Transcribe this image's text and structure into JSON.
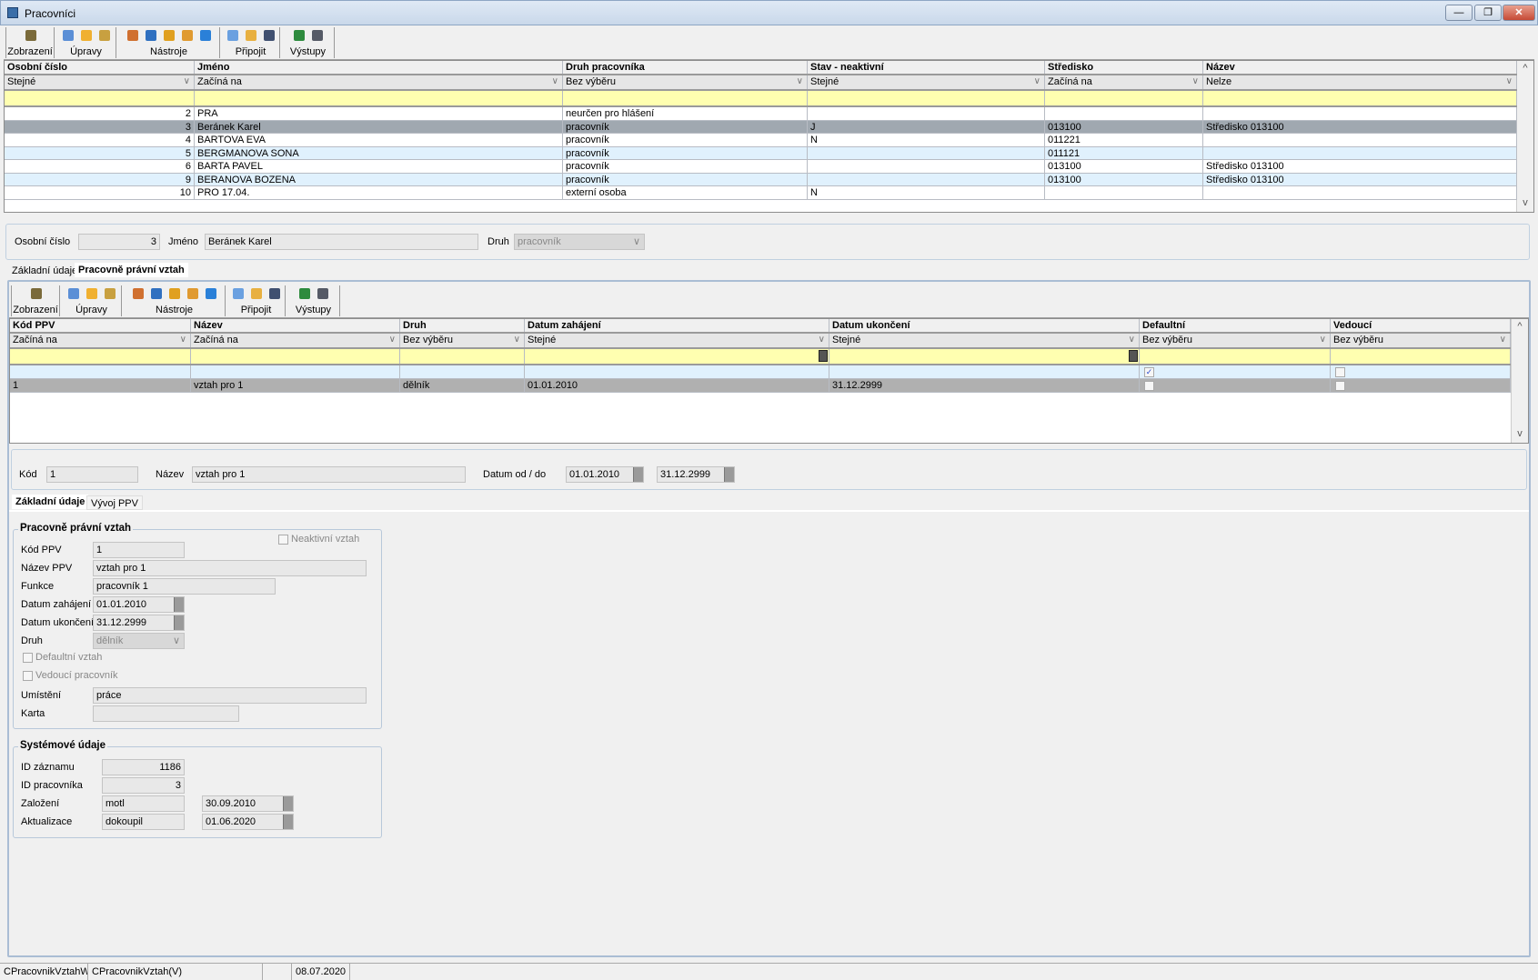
{
  "window": {
    "title": "Pracovníci",
    "minimize": "—",
    "restore": "❐",
    "close": "✕"
  },
  "toolbar": {
    "groups": [
      {
        "label": "Zobrazení",
        "icons": [
          "display-icon"
        ]
      },
      {
        "label": "Úpravy",
        "icons": [
          "new-record-icon",
          "edit-record-icon",
          "delete-icon"
        ]
      },
      {
        "label": "Nástroje",
        "icons": [
          "columns-icon",
          "filter-icon",
          "refresh-icon",
          "chart-icon",
          "help-icon"
        ]
      },
      {
        "label": "Připojit",
        "icons": [
          "attach-note-icon",
          "attach-list-icon",
          "attach-link-icon"
        ]
      },
      {
        "label": "Výstupy",
        "icons": [
          "excel-icon",
          "print-icon"
        ]
      }
    ]
  },
  "main_table": {
    "columns": [
      "Osobní číslo",
      "Jméno",
      "Druh pracovníka",
      "Stav - neaktivní",
      "Středisko",
      "Název"
    ],
    "filters": [
      "Stejné",
      "Začíná na",
      "Bez výběru",
      "Stejné",
      "Začíná na",
      "Nelze"
    ],
    "rows": [
      [
        "2",
        "PRA",
        "neurčen pro hlášení",
        "",
        "",
        ""
      ],
      [
        "3",
        "Beránek Karel",
        "pracovník",
        "J",
        "013100",
        "Středisko 013100"
      ],
      [
        "4",
        "BARTOVA EVA",
        "pracovník",
        "N",
        "011221",
        ""
      ],
      [
        "5",
        "BERGMANOVA SONA",
        "pracovník",
        "",
        "011121",
        ""
      ],
      [
        "6",
        "BARTA PAVEL",
        "pracovník",
        "",
        "013100",
        "Středisko 013100"
      ],
      [
        "9",
        "BERANOVA BOZENA",
        "pracovník",
        "",
        "013100",
        "Středisko 013100"
      ],
      [
        "10",
        "PRO 17.04.",
        "externí osoba",
        "N",
        "",
        ""
      ]
    ],
    "selected_row": 1
  },
  "header_form": {
    "osobni_cislo_label": "Osobní číslo",
    "osobni_cislo": "3",
    "jmeno_label": "Jméno",
    "jmeno": "Beránek Karel",
    "druh_label": "Druh",
    "druh": "pracovník"
  },
  "tabs": [
    "Základní údaje",
    "Pracovně právní vztah"
  ],
  "active_tab": 1,
  "ppv_table": {
    "columns": [
      "Kód PPV",
      "Název",
      "Druh",
      "Datum zahájení",
      "Datum ukončení",
      "Defaultní",
      "Vedoucí"
    ],
    "filters": [
      "Začíná na",
      "Začíná na",
      "Bez výběru",
      "Stejné",
      "Stejné",
      "Bez výběru",
      "Bez výběru"
    ],
    "new_row": {
      "defaultni": true,
      "vedouci": false
    },
    "rows": [
      {
        "kod": "1",
        "nazev": "vztah pro 1",
        "druh": "dělník",
        "zahajeni": "01.01.2010",
        "ukonceni": "31.12.2999",
        "defaultni": false,
        "vedouci": false
      }
    ]
  },
  "detail": {
    "kod_label": "Kód",
    "kod": "1",
    "nazev_label": "Název",
    "nazev": "vztah pro 1",
    "datum_label": "Datum od / do",
    "od": "01.01.2010",
    "do": "31.12.2999"
  },
  "subtabs": [
    "Základní údaje",
    "Vývoj PPV"
  ],
  "ppv_group": {
    "title": "Pracovně právní vztah",
    "neaktivni_label": "Neaktivní vztah",
    "neaktivni": false,
    "kod_label": "Kód PPV",
    "kod": "1",
    "nazev_label": "Název PPV",
    "nazev": "vztah pro 1",
    "funkce_label": "Funkce",
    "funkce": "pracovník 1",
    "zahajeni_label": "Datum zahájení",
    "zahajeni": "01.01.2010",
    "ukonceni_label": "Datum ukončení",
    "ukonceni": "31.12.2999",
    "druh_label": "Druh",
    "druh": "dělník",
    "defaultni_label": "Defaultní vztah",
    "defaultni": false,
    "vedouci_label": "Vedoucí pracovník",
    "vedouci": false,
    "umisteni_label": "Umístění",
    "umisteni": "práce",
    "karta_label": "Karta",
    "karta": ""
  },
  "sys_group": {
    "title": "Systémové údaje",
    "id_zaznamu_label": "ID záznamu",
    "id_zaznamu": "1186",
    "id_pracovnika_label": "ID pracovníka",
    "id_pracovnika": "3",
    "zalozeni_label": "Založení",
    "zalozeni_user": "motl",
    "zalozeni_date": "30.09.2010",
    "aktualizace_label": "Aktualizace",
    "aktualizace_user": "dokoupil",
    "aktualizace_date": "01.06.2020"
  },
  "status": [
    "CPracovnikVztahWra",
    "CPracovnikVztah(V)",
    "",
    "08.07.2020",
    ""
  ],
  "icon_colors": {
    "display-icon": "#7a6a3a",
    "new-record-icon": "#5b8fd6",
    "edit-record-icon": "#f0b030",
    "delete-icon": "#c8a040",
    "columns-icon": "#d07030",
    "filter-icon": "#3070c0",
    "refresh-icon": "#e0a020",
    "chart-icon": "#e09a30",
    "help-icon": "#2a80d8",
    "attach-note-icon": "#6aa0e0",
    "attach-list-icon": "#e8b040",
    "attach-link-icon": "#405070",
    "excel-icon": "#2e8b3e",
    "print-icon": "#555a66"
  }
}
